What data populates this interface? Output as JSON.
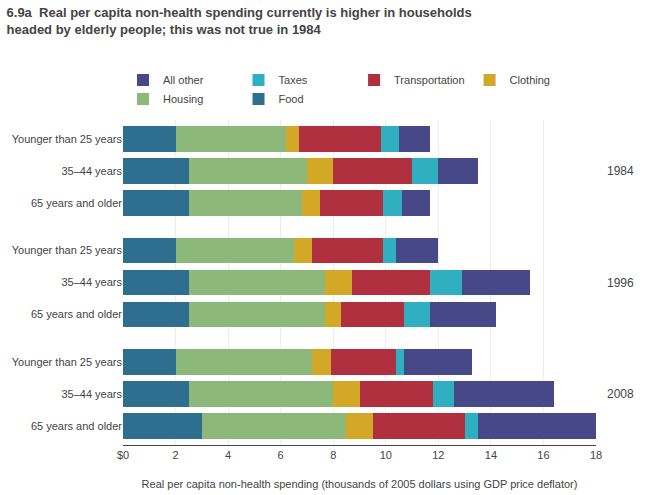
{
  "chart_data": {
    "type": "bar",
    "orientation": "horizontal",
    "stacked": true,
    "title": "6.9a  Real per capita non-health spending currently is higher in households",
    "subtitle": "headed by elderly people; this was not true in 1984",
    "x_label": "Real per capita non-health spending (thousands of 2005 dollars using GDP price deflator)",
    "categories": [
      "Younger than 25 years",
      "35–44 years",
      "65 years and older",
      "Younger than 25 years",
      "35–44 years",
      "65 years and older",
      "Younger than 25 years",
      "35–44 years",
      "65 years and older"
    ],
    "groups": [
      "1984",
      "1996",
      "2008"
    ],
    "series": [
      {
        "name": "Food",
        "color": "#2e6e8e",
        "values": [
          2.0,
          2.5,
          2.5,
          2.0,
          2.5,
          2.5,
          2.0,
          2.5,
          3.0
        ]
      },
      {
        "name": "Housing",
        "color": "#8cb87a",
        "values": [
          4.2,
          4.5,
          4.3,
          4.5,
          5.2,
          5.2,
          5.2,
          5.5,
          5.5
        ]
      },
      {
        "name": "Clothing",
        "color": "#d4a827",
        "values": [
          0.5,
          1.0,
          0.7,
          0.7,
          1.0,
          0.6,
          0.7,
          1.0,
          1.0
        ]
      },
      {
        "name": "Transportation",
        "color": "#b03040",
        "values": [
          3.1,
          3.0,
          2.4,
          2.7,
          3.0,
          2.4,
          2.5,
          2.8,
          3.5
        ]
      },
      {
        "name": "Taxes",
        "color": "#30afc0",
        "values": [
          0.7,
          1.0,
          0.7,
          0.5,
          1.2,
          1.0,
          0.3,
          0.8,
          0.5
        ]
      },
      {
        "name": "All other",
        "color": "#474888",
        "values": [
          1.2,
          1.5,
          1.1,
          1.6,
          2.6,
          2.5,
          2.6,
          3.8,
          4.5
        ]
      }
    ],
    "xlim": [
      0,
      18
    ],
    "xticks": [
      {
        "value": 0,
        "label": "$0"
      },
      2,
      4,
      6,
      8,
      10,
      12,
      14,
      16,
      18
    ],
    "grid": true,
    "legend": "top"
  }
}
